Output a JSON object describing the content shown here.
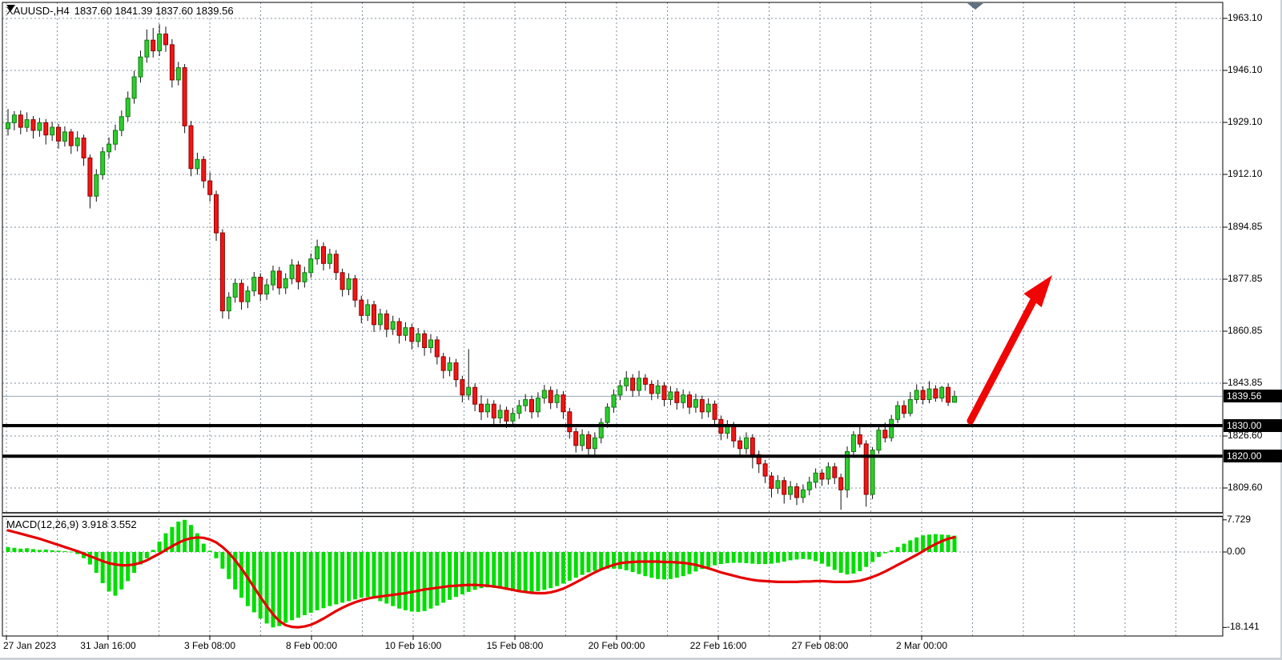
{
  "header": {
    "symbol_period": "XAUUSD-,H4",
    "ohlc_text": "1837.60 1841.39 1837.60 1839.56"
  },
  "indicator": {
    "label": "MACD(12,26,9)",
    "values_text": "3.918 3.552"
  },
  "price_axis": {
    "gridline_labels": [
      {
        "text": "1963.10",
        "price": 1963.1
      },
      {
        "text": "1946.10",
        "price": 1946.1
      },
      {
        "text": "1929.10",
        "price": 1929.1
      },
      {
        "text": "1912.10",
        "price": 1912.1
      },
      {
        "text": "1894.85",
        "price": 1894.85
      },
      {
        "text": "1877.85",
        "price": 1877.85
      },
      {
        "text": "1860.85",
        "price": 1860.85
      },
      {
        "text": "1843.85",
        "price": 1843.85
      },
      {
        "text": "1826.60",
        "price": 1826.6
      },
      {
        "text": "1809.60",
        "price": 1809.6
      }
    ],
    "price_tags": [
      {
        "text": "1839.56",
        "price": 1839.56,
        "kind": "bid"
      },
      {
        "text": "1830.00",
        "price": 1830.0,
        "kind": "level"
      },
      {
        "text": "1820.00",
        "price": 1820.0,
        "kind": "level"
      }
    ]
  },
  "time_axis": {
    "labels": [
      "27 Jan 2023",
      "31 Jan 16:00",
      "3 Feb 08:00",
      "8 Feb 00:00",
      "10 Feb 16:00",
      "15 Feb 08:00",
      "20 Feb 00:00",
      "22 Feb 16:00",
      "27 Feb 08:00",
      "2 Mar 00:00"
    ]
  },
  "macd_axis": {
    "labels": [
      {
        "text": "7.729",
        "value": 7.729
      },
      {
        "text": "0.00",
        "value": 0.0
      },
      {
        "text": "-18.141",
        "value": -18.141
      }
    ]
  },
  "colors": {
    "grid": "#8090A0",
    "bull_fill": "#2FCC2F",
    "bull_border": "#117A11",
    "bear_fill": "#F01616",
    "bear_border": "#8F0000",
    "wick": "#111111",
    "macd_bar": "#00DE00",
    "macd_signal": "#E60000",
    "arrow": "#F00505",
    "level_line": "#000000",
    "bid_line": "#9AA8B8",
    "frame": "#000000",
    "tag_bg": "#000000",
    "tag_text": "#FFFFFF",
    "shift_marker": "#5E6F80"
  },
  "chart_data": {
    "type": "candlestick",
    "symbol": "XAUUSD",
    "timeframe": "H4",
    "title": "XAUUSD-,H4 1837.60 1841.39 1837.60 1839.56",
    "price_axis_range": [
      1802.0,
      1968.0
    ],
    "gridline_prices": [
      1963.1,
      1946.1,
      1929.1,
      1912.1,
      1894.85,
      1877.85,
      1860.85,
      1843.85,
      1826.6,
      1809.6
    ],
    "horizontal_levels": [
      1830.0,
      1820.0
    ],
    "bid_price": 1839.56,
    "time_labels": [
      "27 Jan 2023",
      "31 Jan 16:00",
      "3 Feb 08:00",
      "8 Feb 00:00",
      "10 Feb 16:00",
      "15 Feb 08:00",
      "20 Feb 00:00",
      "22 Feb 16:00",
      "27 Feb 08:00",
      "2 Mar 00:00"
    ],
    "candles_ohlc": [
      [
        1927.0,
        1933.5,
        1924.8,
        1929.0
      ],
      [
        1929.0,
        1932.8,
        1926.5,
        1931.5
      ],
      [
        1931.5,
        1933.0,
        1925.2,
        1927.5
      ],
      [
        1927.5,
        1932.4,
        1926.0,
        1930.0
      ],
      [
        1930.0,
        1931.2,
        1923.8,
        1926.5
      ],
      [
        1926.5,
        1930.6,
        1924.4,
        1929.0
      ],
      [
        1929.0,
        1930.2,
        1921.9,
        1925.0
      ],
      [
        1925.0,
        1929.3,
        1923.1,
        1927.5
      ],
      [
        1927.5,
        1928.6,
        1920.5,
        1923.0
      ],
      [
        1923.0,
        1927.8,
        1921.2,
        1926.0
      ],
      [
        1926.0,
        1927.0,
        1918.8,
        1921.5
      ],
      [
        1921.5,
        1926.2,
        1919.6,
        1924.0
      ],
      [
        1924.0,
        1925.1,
        1914.9,
        1917.5
      ],
      [
        1917.5,
        1918.6,
        1901.0,
        1905.0
      ],
      [
        1905.0,
        1913.8,
        1903.2,
        1912.0
      ],
      [
        1912.0,
        1921.0,
        1910.4,
        1919.5
      ],
      [
        1919.5,
        1924.2,
        1917.3,
        1922.0
      ],
      [
        1922.0,
        1928.4,
        1920.0,
        1926.5
      ],
      [
        1926.5,
        1933.0,
        1924.6,
        1931.0
      ],
      [
        1931.0,
        1939.2,
        1929.4,
        1937.0
      ],
      [
        1937.0,
        1946.0,
        1935.2,
        1944.0
      ],
      [
        1944.0,
        1952.6,
        1942.1,
        1950.5
      ],
      [
        1950.5,
        1959.5,
        1948.6,
        1956.0
      ],
      [
        1956.0,
        1960.0,
        1950.3,
        1952.5
      ],
      [
        1952.5,
        1961.2,
        1950.8,
        1958.0
      ],
      [
        1958.0,
        1960.4,
        1952.2,
        1954.5
      ],
      [
        1954.5,
        1956.3,
        1940.5,
        1943.0
      ],
      [
        1943.0,
        1948.9,
        1941.2,
        1947.0
      ],
      [
        1947.0,
        1948.2,
        1925.6,
        1928.0
      ],
      [
        1928.0,
        1929.6,
        1911.5,
        1914.0
      ],
      [
        1914.0,
        1919.2,
        1912.0,
        1917.0
      ],
      [
        1917.0,
        1918.1,
        1907.6,
        1910.0
      ],
      [
        1910.0,
        1912.8,
        1903.2,
        1905.5
      ],
      [
        1905.5,
        1906.8,
        1890.4,
        1893.0
      ],
      [
        1893.0,
        1894.2,
        1865.0,
        1867.5
      ],
      [
        1867.5,
        1873.6,
        1864.8,
        1872.0
      ],
      [
        1872.0,
        1878.0,
        1870.2,
        1876.5
      ],
      [
        1876.5,
        1877.8,
        1867.9,
        1870.5
      ],
      [
        1870.5,
        1875.6,
        1868.4,
        1874.0
      ],
      [
        1874.0,
        1880.2,
        1872.3,
        1878.5
      ],
      [
        1878.5,
        1879.8,
        1870.6,
        1873.0
      ],
      [
        1873.0,
        1877.9,
        1871.1,
        1876.0
      ],
      [
        1876.0,
        1882.3,
        1874.2,
        1880.5
      ],
      [
        1880.5,
        1881.9,
        1872.8,
        1875.0
      ],
      [
        1875.0,
        1879.8,
        1873.0,
        1878.0
      ],
      [
        1878.0,
        1884.4,
        1876.2,
        1882.5
      ],
      [
        1882.5,
        1883.8,
        1874.5,
        1877.0
      ],
      [
        1877.0,
        1881.9,
        1875.1,
        1880.0
      ],
      [
        1880.0,
        1886.3,
        1878.3,
        1884.5
      ],
      [
        1884.5,
        1890.8,
        1882.6,
        1888.5
      ],
      [
        1888.5,
        1889.9,
        1880.7,
        1883.0
      ],
      [
        1883.0,
        1887.8,
        1881.2,
        1886.0
      ],
      [
        1886.0,
        1887.4,
        1877.6,
        1880.0
      ],
      [
        1880.0,
        1881.3,
        1872.2,
        1874.5
      ],
      [
        1874.5,
        1879.8,
        1872.6,
        1878.0
      ],
      [
        1878.0,
        1879.2,
        1868.7,
        1871.0
      ],
      [
        1871.0,
        1872.4,
        1863.5,
        1866.0
      ],
      [
        1866.0,
        1871.3,
        1864.2,
        1869.5
      ],
      [
        1869.5,
        1870.8,
        1860.6,
        1863.0
      ],
      [
        1863.0,
        1868.2,
        1861.2,
        1866.5
      ],
      [
        1866.5,
        1867.8,
        1858.9,
        1861.5
      ],
      [
        1861.5,
        1865.9,
        1859.6,
        1864.0
      ],
      [
        1864.0,
        1865.2,
        1856.8,
        1859.5
      ],
      [
        1859.5,
        1863.8,
        1857.7,
        1862.0
      ],
      [
        1862.0,
        1863.3,
        1854.9,
        1857.5
      ],
      [
        1857.5,
        1861.9,
        1855.6,
        1860.0
      ],
      [
        1860.0,
        1861.2,
        1852.8,
        1855.5
      ],
      [
        1855.5,
        1859.9,
        1853.7,
        1858.0
      ],
      [
        1858.0,
        1859.2,
        1850.0,
        1852.5
      ],
      [
        1852.5,
        1853.8,
        1845.4,
        1848.0
      ],
      [
        1848.0,
        1852.4,
        1846.1,
        1850.5
      ],
      [
        1850.5,
        1851.8,
        1842.6,
        1845.0
      ],
      [
        1845.0,
        1846.3,
        1837.6,
        1840.0
      ],
      [
        1840.0,
        1855.0,
        1838.3,
        1842.5
      ],
      [
        1842.5,
        1843.8,
        1834.7,
        1837.0
      ],
      [
        1837.0,
        1839.9,
        1831.8,
        1834.5
      ],
      [
        1834.5,
        1838.8,
        1832.6,
        1837.0
      ],
      [
        1837.0,
        1838.3,
        1830.0,
        1832.5
      ],
      [
        1832.5,
        1836.9,
        1830.7,
        1835.0
      ],
      [
        1835.0,
        1836.2,
        1829.2,
        1831.5
      ],
      [
        1831.5,
        1835.8,
        1829.7,
        1834.0
      ],
      [
        1834.0,
        1838.4,
        1832.2,
        1836.5
      ],
      [
        1836.5,
        1840.3,
        1834.6,
        1838.5
      ],
      [
        1838.5,
        1839.8,
        1832.3,
        1834.5
      ],
      [
        1834.5,
        1840.9,
        1832.7,
        1839.0
      ],
      [
        1839.0,
        1843.3,
        1837.2,
        1841.5
      ],
      [
        1841.5,
        1842.8,
        1835.4,
        1837.5
      ],
      [
        1837.5,
        1841.9,
        1835.7,
        1840.0
      ],
      [
        1840.0,
        1841.3,
        1832.2,
        1834.5
      ],
      [
        1834.5,
        1835.8,
        1825.7,
        1828.0
      ],
      [
        1828.0,
        1829.3,
        1821.2,
        1823.5
      ],
      [
        1823.5,
        1828.8,
        1821.7,
        1827.0
      ],
      [
        1827.0,
        1828.2,
        1820.1,
        1822.5
      ],
      [
        1822.5,
        1827.8,
        1819.5,
        1826.0
      ],
      [
        1826.0,
        1832.4,
        1824.2,
        1831.0
      ],
      [
        1831.0,
        1837.3,
        1829.3,
        1836.0
      ],
      [
        1836.0,
        1841.8,
        1834.2,
        1840.0
      ],
      [
        1840.0,
        1844.9,
        1838.3,
        1843.0
      ],
      [
        1843.0,
        1847.8,
        1841.3,
        1845.5
      ],
      [
        1845.5,
        1846.8,
        1839.4,
        1841.5
      ],
      [
        1841.5,
        1847.9,
        1839.7,
        1845.5
      ],
      [
        1845.5,
        1846.8,
        1841.4,
        1843.5
      ],
      [
        1843.5,
        1844.8,
        1838.3,
        1840.5
      ],
      [
        1840.5,
        1844.9,
        1838.7,
        1843.0
      ],
      [
        1843.0,
        1844.2,
        1836.3,
        1838.5
      ],
      [
        1838.5,
        1842.9,
        1836.7,
        1841.0
      ],
      [
        1841.0,
        1842.3,
        1835.2,
        1837.5
      ],
      [
        1837.5,
        1841.8,
        1835.6,
        1840.0
      ],
      [
        1840.0,
        1841.2,
        1833.8,
        1836.0
      ],
      [
        1836.0,
        1840.4,
        1834.2,
        1838.5
      ],
      [
        1838.5,
        1839.8,
        1832.2,
        1834.5
      ],
      [
        1834.5,
        1838.9,
        1832.7,
        1837.0
      ],
      [
        1837.0,
        1838.2,
        1829.8,
        1832.0
      ],
      [
        1832.0,
        1833.3,
        1825.2,
        1827.5
      ],
      [
        1827.5,
        1831.8,
        1825.7,
        1830.0
      ],
      [
        1830.0,
        1831.2,
        1822.8,
        1825.0
      ],
      [
        1825.0,
        1826.3,
        1820.1,
        1822.5
      ],
      [
        1822.5,
        1827.8,
        1820.7,
        1826.0
      ],
      [
        1826.0,
        1827.2,
        1816.0,
        1820.5
      ],
      [
        1820.5,
        1821.8,
        1814.5,
        1817.5
      ],
      [
        1817.5,
        1818.8,
        1811.2,
        1813.5
      ],
      [
        1813.5,
        1814.8,
        1806.5,
        1809.5
      ],
      [
        1809.5,
        1813.8,
        1807.7,
        1812.0
      ],
      [
        1812.0,
        1813.2,
        1804.5,
        1807.5
      ],
      [
        1807.5,
        1811.9,
        1805.7,
        1810.0
      ],
      [
        1810.0,
        1811.2,
        1804.0,
        1806.5
      ],
      [
        1806.5,
        1810.8,
        1804.7,
        1809.0
      ],
      [
        1809.0,
        1813.3,
        1807.2,
        1811.5
      ],
      [
        1811.5,
        1816.0,
        1809.7,
        1814.5
      ],
      [
        1814.5,
        1815.8,
        1810.3,
        1812.5
      ],
      [
        1812.5,
        1818.0,
        1810.7,
        1816.5
      ],
      [
        1816.5,
        1817.8,
        1810.9,
        1813.0
      ],
      [
        1813.0,
        1814.3,
        1802.5,
        1809.0
      ],
      [
        1809.0,
        1823.2,
        1806.4,
        1821.5
      ],
      [
        1821.5,
        1828.2,
        1820.3,
        1827.0
      ],
      [
        1827.0,
        1829.5,
        1822.8,
        1824.0
      ],
      [
        1824.0,
        1825.2,
        1803.5,
        1807.5
      ],
      [
        1807.5,
        1823.0,
        1806.0,
        1822.0
      ],
      [
        1822.0,
        1830.0,
        1820.8,
        1828.5
      ],
      [
        1828.5,
        1831.0,
        1824.5,
        1826.0
      ],
      [
        1826.0,
        1833.5,
        1824.8,
        1832.0
      ],
      [
        1832.0,
        1838.0,
        1830.8,
        1836.5
      ],
      [
        1836.5,
        1838.2,
        1832.5,
        1834.0
      ],
      [
        1834.0,
        1841.0,
        1833.0,
        1838.5
      ],
      [
        1838.5,
        1843.5,
        1837.2,
        1841.5
      ],
      [
        1841.5,
        1842.8,
        1836.9,
        1838.5
      ],
      [
        1838.5,
        1844.5,
        1837.3,
        1842.0
      ],
      [
        1842.0,
        1843.2,
        1837.8,
        1839.0
      ],
      [
        1839.0,
        1843.0,
        1837.8,
        1842.5
      ],
      [
        1842.5,
        1843.8,
        1836.4,
        1837.6
      ],
      [
        1837.6,
        1841.4,
        1837.6,
        1839.56
      ]
    ],
    "macd": {
      "params": "12,26,9",
      "current_macd": 3.918,
      "current_signal": 3.552,
      "axis_max": 7.729,
      "axis_min": -18.141,
      "histogram": [
        1.2,
        1.0,
        0.8,
        0.9,
        0.7,
        0.5,
        0.6,
        0.4,
        0.3,
        0.2,
        0.1,
        -0.5,
        -1.5,
        -3.0,
        -5.0,
        -7.5,
        -9.5,
        -10.5,
        -9.0,
        -7.0,
        -5.0,
        -3.0,
        -1.5,
        0.5,
        2.5,
        4.5,
        6.0,
        7.3,
        7.73,
        6.5,
        4.5,
        2.0,
        0.3,
        -1.5,
        -4.0,
        -6.5,
        -9.0,
        -11.0,
        -13.0,
        -14.5,
        -16.0,
        -17.2,
        -18.14,
        -17.8,
        -17.0,
        -16.4,
        -15.8,
        -15.2,
        -14.6,
        -14.0,
        -13.5,
        -13.0,
        -12.6,
        -12.2,
        -11.8,
        -11.4,
        -11.0,
        -10.8,
        -11.2,
        -11.8,
        -12.4,
        -13.0,
        -13.6,
        -14.0,
        -14.3,
        -14.4,
        -14.2,
        -13.6,
        -12.9,
        -12.2,
        -11.5,
        -10.8,
        -10.2,
        -9.6,
        -9.1,
        -8.7,
        -8.5,
        -8.6,
        -8.8,
        -9.1,
        -9.4,
        -9.6,
        -9.7,
        -9.6,
        -9.4,
        -9.1,
        -8.7,
        -8.2,
        -7.6,
        -6.9,
        -6.2,
        -5.5,
        -4.9,
        -4.5,
        -4.2,
        -4.0,
        -4.0,
        -4.1,
        -4.4,
        -4.8,
        -5.3,
        -5.8,
        -6.2,
        -6.5,
        -6.6,
        -6.5,
        -6.2,
        -5.8,
        -5.3,
        -4.7,
        -4.1,
        -3.6,
        -3.2,
        -2.9,
        -2.7,
        -2.6,
        -2.6,
        -2.7,
        -2.8,
        -2.9,
        -2.9,
        -2.8,
        -2.6,
        -2.3,
        -2.0,
        -1.8,
        -1.7,
        -1.8,
        -2.2,
        -2.8,
        -3.5,
        -4.3,
        -5.0,
        -5.4,
        -5.2,
        -4.6,
        -3.6,
        -2.4,
        -1.2,
        -0.3,
        0.4,
        1.2,
        2.0,
        2.8,
        3.5,
        4.0,
        4.2,
        4.3,
        4.2,
        4.1,
        3.918
      ],
      "signal": [
        5.2,
        4.8,
        4.4,
        4.0,
        3.6,
        3.2,
        2.7,
        2.2,
        1.7,
        1.2,
        0.7,
        0.2,
        -0.4,
        -1.0,
        -1.6,
        -2.2,
        -2.7,
        -3.0,
        -3.2,
        -3.2,
        -3.0,
        -2.6,
        -2.0,
        -1.2,
        -0.4,
        0.5,
        1.4,
        2.2,
        2.9,
        3.3,
        3.5,
        3.4,
        3.0,
        2.3,
        1.2,
        -0.2,
        -2.0,
        -4.0,
        -6.2,
        -8.5,
        -10.8,
        -13.0,
        -15.0,
        -16.6,
        -17.6,
        -18.0,
        -18.1,
        -17.9,
        -17.5,
        -16.8,
        -16.0,
        -15.1,
        -14.2,
        -13.4,
        -12.7,
        -12.1,
        -11.6,
        -11.2,
        -10.9,
        -10.7,
        -10.5,
        -10.3,
        -10.1,
        -9.9,
        -9.6,
        -9.3,
        -9.0,
        -8.8,
        -8.6,
        -8.4,
        -8.2,
        -8.1,
        -8.0,
        -7.9,
        -7.9,
        -8.0,
        -8.1,
        -8.3,
        -8.5,
        -8.8,
        -9.1,
        -9.4,
        -9.6,
        -9.8,
        -9.9,
        -9.9,
        -9.7,
        -9.3,
        -8.8,
        -8.1,
        -7.3,
        -6.5,
        -5.7,
        -4.9,
        -4.2,
        -3.6,
        -3.1,
        -2.7,
        -2.5,
        -2.4,
        -2.3,
        -2.3,
        -2.3,
        -2.3,
        -2.4,
        -2.4,
        -2.5,
        -2.6,
        -2.8,
        -3.1,
        -3.5,
        -3.9,
        -4.4,
        -4.9,
        -5.3,
        -5.7,
        -6.1,
        -6.4,
        -6.7,
        -6.9,
        -7.0,
        -7.1,
        -7.2,
        -7.2,
        -7.2,
        -7.2,
        -7.1,
        -7.1,
        -7.0,
        -7.0,
        -7.1,
        -7.2,
        -7.2,
        -7.2,
        -7.1,
        -6.9,
        -6.5,
        -6.0,
        -5.4,
        -4.7,
        -3.9,
        -3.1,
        -2.3,
        -1.5,
        -0.7,
        0.2,
        1.1,
        1.9,
        2.6,
        3.2,
        3.552
      ]
    },
    "annotations": {
      "arrow": {
        "direction": "up",
        "from_price": 1830.0,
        "comment": "projected breakout up"
      }
    }
  }
}
